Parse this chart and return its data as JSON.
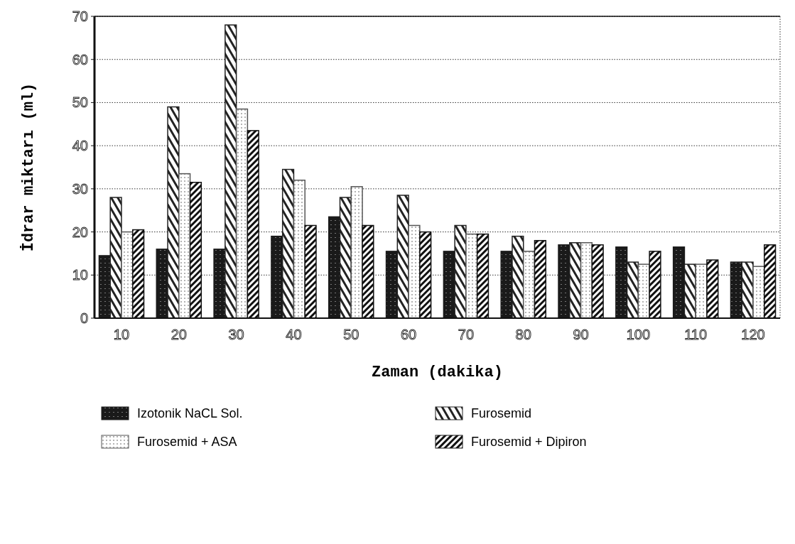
{
  "chart_data": {
    "type": "bar",
    "xlabel": "Zaman (dakika)",
    "ylabel": "İdrar miktarı (ml)",
    "categories": [
      "10",
      "20",
      "30",
      "40",
      "50",
      "60",
      "70",
      "80",
      "90",
      "100",
      "110",
      "120"
    ],
    "series": [
      {
        "name": "Izotonik NaCL Sol.",
        "color": "#1a1a1a",
        "values": [
          14.5,
          16,
          16,
          19,
          23.5,
          15.5,
          15.5,
          15.5,
          17,
          16.5,
          16.5,
          13
        ]
      },
      {
        "name": "Furosemid",
        "color": "#222222",
        "values": [
          28,
          49,
          68,
          34.5,
          28,
          28.5,
          21.5,
          19,
          17.5,
          13,
          12.5,
          13
        ]
      },
      {
        "name": "Furosemid + ASA",
        "color": "#555555",
        "values": [
          20,
          33.5,
          48.5,
          32,
          30.5,
          21.5,
          19.5,
          15.5,
          17.5,
          12.5,
          12.5,
          12
        ]
      },
      {
        "name": "Furosemid + Dipiron",
        "color": "#111111",
        "values": [
          20.5,
          31.5,
          43.5,
          21.5,
          21.5,
          20,
          19.5,
          18,
          17,
          15.5,
          13.5,
          17
        ]
      }
    ],
    "ylim": [
      0,
      70
    ],
    "yticks": [
      0,
      10,
      20,
      30,
      40,
      50,
      60,
      70
    ],
    "grid": "y",
    "legend": "bottom"
  }
}
